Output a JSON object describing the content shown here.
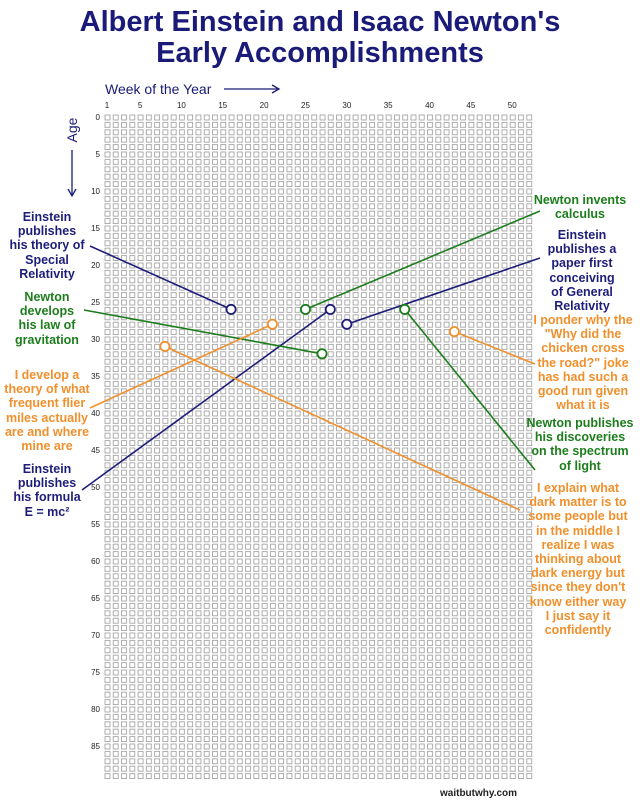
{
  "title_lines": [
    "Albert Einstein and Isaac Newton's",
    "Early Accomplishments"
  ],
  "credit": "waitbutwhy.com",
  "colors": {
    "title": "#1a1a78",
    "einstein": "#1e1e7a",
    "newton": "#1d7d1d",
    "me": "#f0902c",
    "grid": "#9a9a9a"
  },
  "chart_data": {
    "type": "scatter",
    "xlabel": "Week of the Year",
    "ylabel": "Age",
    "xlim": [
      1,
      52
    ],
    "ylim": [
      0,
      89
    ],
    "x_ticks": [
      1,
      5,
      10,
      15,
      20,
      25,
      30,
      35,
      40,
      45,
      50
    ],
    "y_ticks": [
      0,
      5,
      10,
      15,
      20,
      25,
      30,
      35,
      40,
      45,
      50,
      55,
      60,
      65,
      70,
      75,
      80,
      85
    ],
    "grid": "one box per week of life",
    "series": [
      {
        "name": "Einstein",
        "color_key": "einstein",
        "points": [
          {
            "week": 16,
            "age": 26,
            "side": "left",
            "label": [
              "Einstein",
              "publishes",
              "his theory of",
              "Special",
              "Relativity"
            ]
          },
          {
            "week": 28,
            "age": 26,
            "side": "left",
            "label": [
              "Einstein",
              "publishes",
              "his formula",
              "E = mc²"
            ]
          },
          {
            "week": 30,
            "age": 28,
            "side": "right",
            "label": [
              "Einstein",
              "publishes a",
              "paper first",
              "conceiving",
              "of General",
              "Relativity"
            ]
          }
        ]
      },
      {
        "name": "Newton",
        "color_key": "newton",
        "points": [
          {
            "week": 27,
            "age": 32,
            "side": "left",
            "label": [
              "Newton",
              "develops",
              "his law of",
              "gravitation"
            ]
          },
          {
            "week": 25,
            "age": 26,
            "side": "right",
            "label": [
              "Newton invents",
              "calculus"
            ]
          },
          {
            "week": 37,
            "age": 26,
            "side": "right",
            "label": [
              "Newton publishes",
              "his discoveries",
              "on the spectrum",
              "of light"
            ]
          }
        ]
      },
      {
        "name": "Me",
        "color_key": "me",
        "points": [
          {
            "week": 21,
            "age": 28,
            "side": "left",
            "label": [
              "I develop a",
              "theory of what",
              "frequent flier",
              "miles actually",
              "are and where",
              "mine are"
            ]
          },
          {
            "week": 43,
            "age": 29,
            "side": "right",
            "label": [
              "I ponder why the",
              "\"Why did the",
              "chicken cross",
              "the road?\" joke",
              "has had such a",
              "good run given",
              "what it is"
            ]
          },
          {
            "week": 8,
            "age": 31,
            "side": "right",
            "label": [
              "I explain what",
              "dark matter is to",
              "some people but",
              "in the middle I",
              "realize I was",
              "thinking about",
              "dark energy but",
              "since they don't",
              "know either way",
              "I just say it",
              "confidently"
            ]
          }
        ]
      }
    ]
  }
}
